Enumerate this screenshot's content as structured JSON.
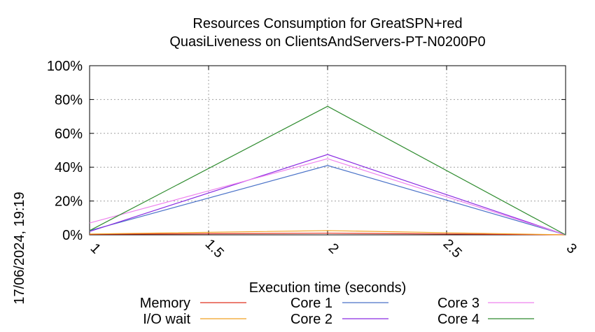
{
  "chart_data": {
    "type": "line",
    "title": "Resources Consumption for GreatSPN+red",
    "subtitle": "QuasiLiveness on ClientsAndServers-PT-N0200P0",
    "xlabel": "Execution time (seconds)",
    "ylabel": "",
    "side_label": "17/06/2024, 19:19",
    "xlim": [
      1,
      3
    ],
    "ylim": [
      0,
      100
    ],
    "x_ticks": [
      "1",
      "1.5",
      "2",
      "2.5",
      "3"
    ],
    "y_ticks": [
      "0%",
      "20%",
      "40%",
      "60%",
      "80%",
      "100%"
    ],
    "grid": true,
    "legend_position": "bottom",
    "x": [
      1,
      2,
      3
    ],
    "series": [
      {
        "name": "Memory",
        "color": "#e0301e",
        "values": [
          0.3,
          1.0,
          0.0
        ]
      },
      {
        "name": "I/O wait",
        "color": "#f0a020",
        "values": [
          0.5,
          2.5,
          0.0
        ]
      },
      {
        "name": "Core 1",
        "color": "#4a72c8",
        "values": [
          2.5,
          41.0,
          0.0
        ]
      },
      {
        "name": "Core 2",
        "color": "#8a2be2",
        "values": [
          2.0,
          47.5,
          0.0
        ]
      },
      {
        "name": "Core 3",
        "color": "#ee82ee",
        "values": [
          7.0,
          45.0,
          0.0
        ]
      },
      {
        "name": "Core 4",
        "color": "#2e8b2e",
        "values": [
          2.5,
          76.0,
          0.0
        ]
      }
    ]
  }
}
